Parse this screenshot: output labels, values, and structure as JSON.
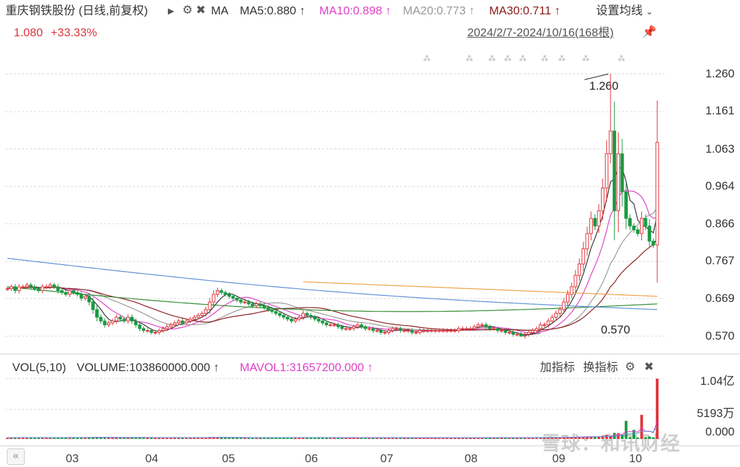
{
  "header": {
    "stock_title": "重庆钢铁股份 (日线,前复权)",
    "ma_label": "MA",
    "ma5": "MA5:0.880",
    "ma10": "MA10:0.898",
    "ma20": "MA20:0.773",
    "ma30": "MA30:0.711",
    "ma_settings": "设置均线",
    "last_price": "1.080",
    "change_pct": "+33.33%",
    "date_range": "2024/2/7-2024/10/16(168根)",
    "arrow": "↑"
  },
  "price_axis": {
    "ticks": [
      "1.260",
      "1.161",
      "1.063",
      "0.964",
      "0.866",
      "0.767",
      "0.669",
      "0.570"
    ],
    "high_label": "1.260",
    "low_label": "0.570"
  },
  "volume_panel": {
    "vol_label": "VOL(5,10)",
    "volume_value": "VOLUME:103860000.000",
    "mavol_value": "MAVOL1:31657200.000",
    "add_indicator": "加指标",
    "switch_indicator": "换指标",
    "ticks": [
      "1.04亿",
      "5193万",
      "0.000"
    ]
  },
  "months": [
    "03",
    "04",
    "05",
    "06",
    "07",
    "08",
    "09",
    "10"
  ],
  "watermark": "雪球：和讯财经",
  "colors": {
    "up": "#e0333a",
    "down": "#1a9940",
    "ma5": "#333333",
    "ma10": "#e040c8",
    "ma20": "#999999",
    "ma30": "#8b1a1a",
    "ma60": "#2f8a2f",
    "ma120": "#5b8fd6",
    "ma250": "#f0a040"
  },
  "chart_data": {
    "type": "candlestick",
    "date_range": [
      "2024-02-07",
      "2024-10-16"
    ],
    "bars": 168,
    "price_range": [
      0.57,
      1.26
    ],
    "highest": 1.26,
    "lowest": 0.57,
    "last_close": 1.08,
    "last_change_pct": 33.33,
    "close_approx": [
      0.695,
      0.7,
      0.69,
      0.7,
      0.7,
      0.705,
      0.7,
      0.695,
      0.69,
      0.7,
      0.7,
      0.705,
      0.7,
      0.69,
      0.685,
      0.68,
      0.69,
      0.685,
      0.68,
      0.67,
      0.675,
      0.66,
      0.64,
      0.62,
      0.61,
      0.6,
      0.605,
      0.61,
      0.62,
      0.615,
      0.61,
      0.62,
      0.61,
      0.6,
      0.59,
      0.585,
      0.585,
      0.58,
      0.58,
      0.585,
      0.59,
      0.595,
      0.6,
      0.605,
      0.61,
      0.605,
      0.61,
      0.615,
      0.62,
      0.625,
      0.63,
      0.64,
      0.66,
      0.68,
      0.69,
      0.685,
      0.68,
      0.675,
      0.67,
      0.665,
      0.66,
      0.66,
      0.655,
      0.65,
      0.655,
      0.65,
      0.645,
      0.64,
      0.635,
      0.63,
      0.625,
      0.62,
      0.615,
      0.61,
      0.615,
      0.62,
      0.63,
      0.625,
      0.62,
      0.615,
      0.61,
      0.605,
      0.6,
      0.6,
      0.6,
      0.595,
      0.59,
      0.59,
      0.59,
      0.595,
      0.6,
      0.595,
      0.59,
      0.59,
      0.585,
      0.585,
      0.58,
      0.58,
      0.585,
      0.59,
      0.59,
      0.585,
      0.585,
      0.585,
      0.58,
      0.58,
      0.585,
      0.585,
      0.585,
      0.585,
      0.585,
      0.585,
      0.585,
      0.585,
      0.585,
      0.585,
      0.59,
      0.59,
      0.59,
      0.59,
      0.595,
      0.6,
      0.6,
      0.595,
      0.59,
      0.59,
      0.585,
      0.585,
      0.58,
      0.58,
      0.575,
      0.575,
      0.57,
      0.575,
      0.58,
      0.585,
      0.59,
      0.6,
      0.6,
      0.61,
      0.62,
      0.63,
      0.64,
      0.66,
      0.68,
      0.7,
      0.73,
      0.76,
      0.8,
      0.84,
      0.88,
      0.86,
      0.9,
      0.96,
      1.05,
      1.11,
      0.9,
      1.05,
      0.95,
      0.88,
      0.86,
      0.85,
      0.84,
      0.88,
      0.86,
      0.82,
      0.81,
      1.08
    ]
  }
}
